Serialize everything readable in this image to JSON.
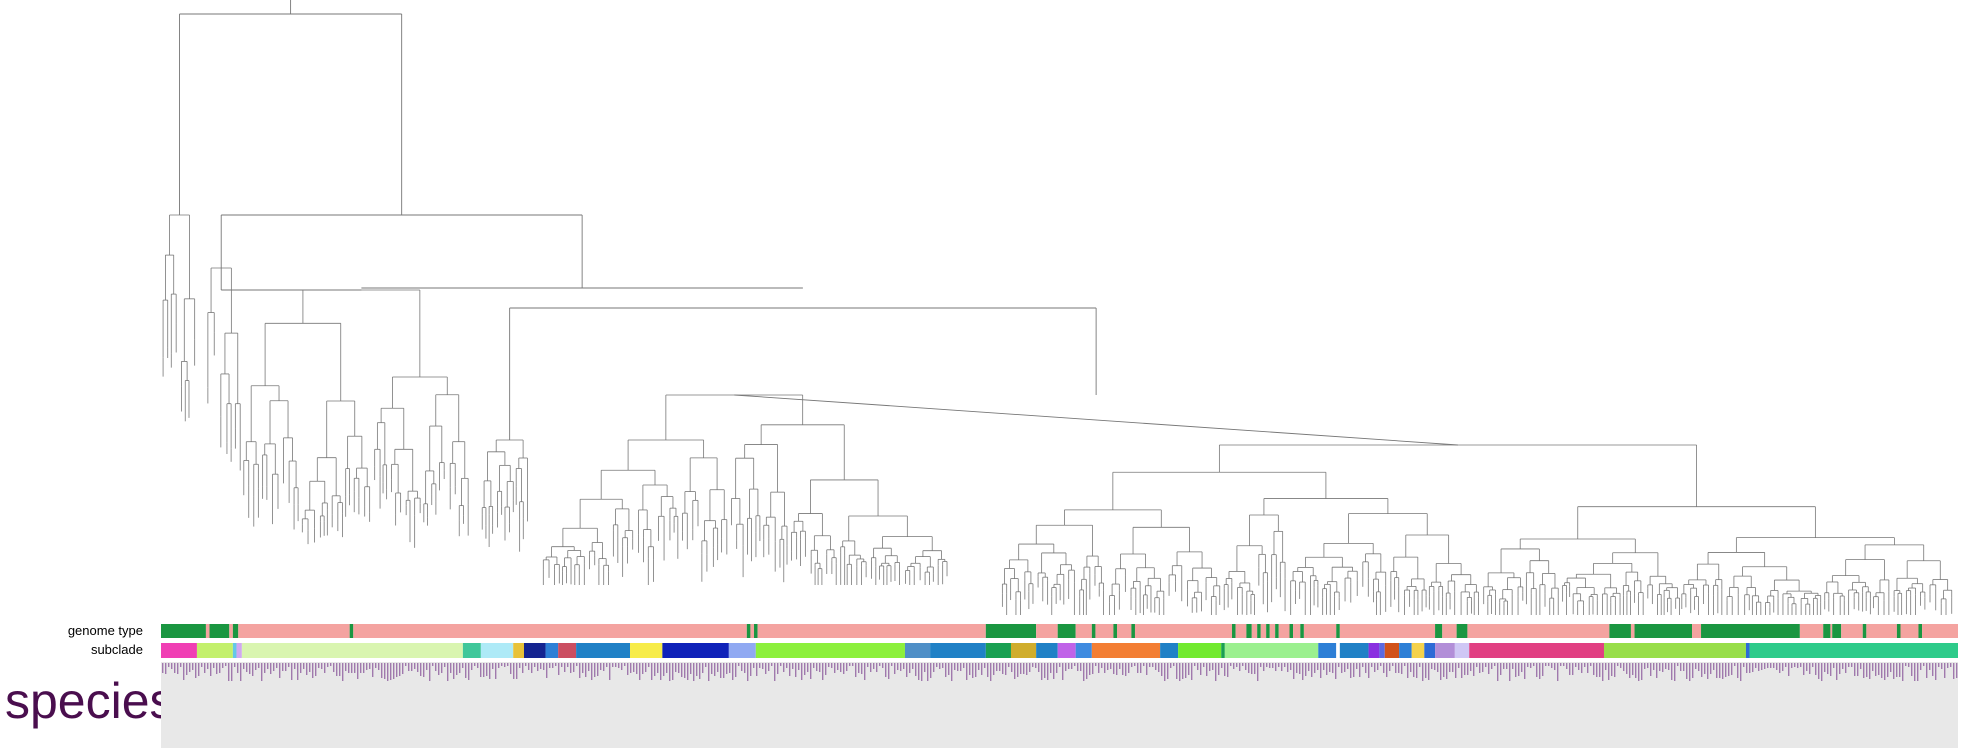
{
  "chart_data": {
    "type": "dendrogram",
    "tracks": {
      "genome_type": {
        "label": "genome type",
        "colors": {
          "primary": "#1a9641",
          "secondary": "#f4a3a0"
        },
        "segments": [
          [
            0,
            0.025,
            "primary"
          ],
          [
            0.025,
            0.027,
            "secondary"
          ],
          [
            0.027,
            0.038,
            "primary"
          ],
          [
            0.038,
            0.04,
            "secondary"
          ],
          [
            0.04,
            0.043,
            "primary"
          ],
          [
            0.043,
            0.105,
            "secondary"
          ],
          [
            0.105,
            0.107,
            "primary"
          ],
          [
            0.107,
            0.326,
            "secondary"
          ],
          [
            0.326,
            0.328,
            "primary"
          ],
          [
            0.328,
            0.33,
            "secondary"
          ],
          [
            0.33,
            0.332,
            "primary"
          ],
          [
            0.332,
            0.459,
            "secondary"
          ],
          [
            0.459,
            0.487,
            "primary"
          ],
          [
            0.487,
            0.499,
            "secondary"
          ],
          [
            0.499,
            0.509,
            "primary"
          ],
          [
            0.509,
            0.518,
            "secondary"
          ],
          [
            0.518,
            0.52,
            "primary"
          ],
          [
            0.52,
            0.53,
            "secondary"
          ],
          [
            0.53,
            0.532,
            "primary"
          ],
          [
            0.532,
            0.54,
            "secondary"
          ],
          [
            0.54,
            0.542,
            "primary"
          ],
          [
            0.542,
            0.596,
            "secondary"
          ],
          [
            0.596,
            0.598,
            "primary"
          ],
          [
            0.598,
            0.604,
            "secondary"
          ],
          [
            0.604,
            0.607,
            "primary"
          ],
          [
            0.607,
            0.61,
            "secondary"
          ],
          [
            0.61,
            0.612,
            "primary"
          ],
          [
            0.612,
            0.615,
            "secondary"
          ],
          [
            0.615,
            0.617,
            "primary"
          ],
          [
            0.617,
            0.62,
            "secondary"
          ],
          [
            0.62,
            0.622,
            "primary"
          ],
          [
            0.622,
            0.628,
            "secondary"
          ],
          [
            0.628,
            0.63,
            "primary"
          ],
          [
            0.63,
            0.634,
            "secondary"
          ],
          [
            0.634,
            0.636,
            "primary"
          ],
          [
            0.636,
            0.654,
            "secondary"
          ],
          [
            0.654,
            0.656,
            "primary"
          ],
          [
            0.656,
            0.709,
            "secondary"
          ],
          [
            0.709,
            0.713,
            "primary"
          ],
          [
            0.713,
            0.721,
            "secondary"
          ],
          [
            0.721,
            0.727,
            "primary"
          ],
          [
            0.727,
            0.806,
            "secondary"
          ],
          [
            0.806,
            0.818,
            "primary"
          ],
          [
            0.818,
            0.82,
            "secondary"
          ],
          [
            0.82,
            0.852,
            "primary"
          ],
          [
            0.852,
            0.857,
            "secondary"
          ],
          [
            0.857,
            0.912,
            "primary"
          ],
          [
            0.912,
            0.925,
            "secondary"
          ],
          [
            0.925,
            0.929,
            "primary"
          ],
          [
            0.929,
            0.93,
            "secondary"
          ],
          [
            0.93,
            0.935,
            "primary"
          ],
          [
            0.935,
            0.947,
            "secondary"
          ],
          [
            0.947,
            0.949,
            "primary"
          ],
          [
            0.949,
            0.966,
            "secondary"
          ],
          [
            0.966,
            0.968,
            "primary"
          ],
          [
            0.968,
            0.978,
            "secondary"
          ],
          [
            0.978,
            0.98,
            "primary"
          ],
          [
            0.98,
            1.0,
            "secondary"
          ]
        ]
      },
      "subclade": {
        "label": "subclade",
        "segments": [
          [
            0,
            0.02,
            "#f03fb4"
          ],
          [
            0.02,
            0.04,
            "#c3f06c"
          ],
          [
            0.04,
            0.042,
            "#64c8e8"
          ],
          [
            0.042,
            0.045,
            "#d0a8f0"
          ],
          [
            0.045,
            0.168,
            "#d9f5b0"
          ],
          [
            0.168,
            0.178,
            "#40c79a"
          ],
          [
            0.178,
            0.196,
            "#aeeaf7"
          ],
          [
            0.196,
            0.202,
            "#e8c239"
          ],
          [
            0.202,
            0.214,
            "#142490"
          ],
          [
            0.214,
            0.221,
            "#2d7fd6"
          ],
          [
            0.221,
            0.231,
            "#cb4e61"
          ],
          [
            0.231,
            0.261,
            "#2081c6"
          ],
          [
            0.261,
            0.279,
            "#f7ec49"
          ],
          [
            0.279,
            0.316,
            "#0f22b9"
          ],
          [
            0.316,
            0.331,
            "#90a9f2"
          ],
          [
            0.331,
            0.414,
            "#8cf03c"
          ],
          [
            0.414,
            0.428,
            "#4f8fc7"
          ],
          [
            0.428,
            0.459,
            "#2081c6"
          ],
          [
            0.459,
            0.473,
            "#1aa052"
          ],
          [
            0.473,
            0.487,
            "#d0ad2c"
          ],
          [
            0.487,
            0.499,
            "#2081c6"
          ],
          [
            0.499,
            0.509,
            "#c063e8"
          ],
          [
            0.509,
            0.518,
            "#3f8be0"
          ],
          [
            0.518,
            0.556,
            "#f37e33"
          ],
          [
            0.556,
            0.566,
            "#2081c6"
          ],
          [
            0.566,
            0.59,
            "#72ea2f"
          ],
          [
            0.59,
            0.592,
            "#1aa052"
          ],
          [
            0.592,
            0.644,
            "#9bf08f"
          ],
          [
            0.644,
            0.654,
            "#2d7fd6"
          ],
          [
            0.654,
            0.656,
            "#ffffff"
          ],
          [
            0.656,
            0.672,
            "#2081c6"
          ],
          [
            0.672,
            0.678,
            "#8a30e0"
          ],
          [
            0.678,
            0.681,
            "#5b69e0"
          ],
          [
            0.681,
            0.689,
            "#d1521a"
          ],
          [
            0.689,
            0.696,
            "#2d7fd6"
          ],
          [
            0.696,
            0.703,
            "#f5d24c"
          ],
          [
            0.703,
            0.709,
            "#2d6ad6"
          ],
          [
            0.709,
            0.72,
            "#b28ed8"
          ],
          [
            0.72,
            0.728,
            "#cfc7f5"
          ],
          [
            0.728,
            0.803,
            "#e13f82"
          ],
          [
            0.803,
            0.882,
            "#98de4a"
          ],
          [
            0.882,
            0.884,
            "#2d6ad6"
          ],
          [
            0.884,
            1.0,
            "#2ecb8a"
          ]
        ]
      },
      "species": {
        "label": "species",
        "label_color": "#4a0e4e",
        "panel_color": "#e8e8e8",
        "mark_color": "#7a3d8e"
      }
    }
  }
}
